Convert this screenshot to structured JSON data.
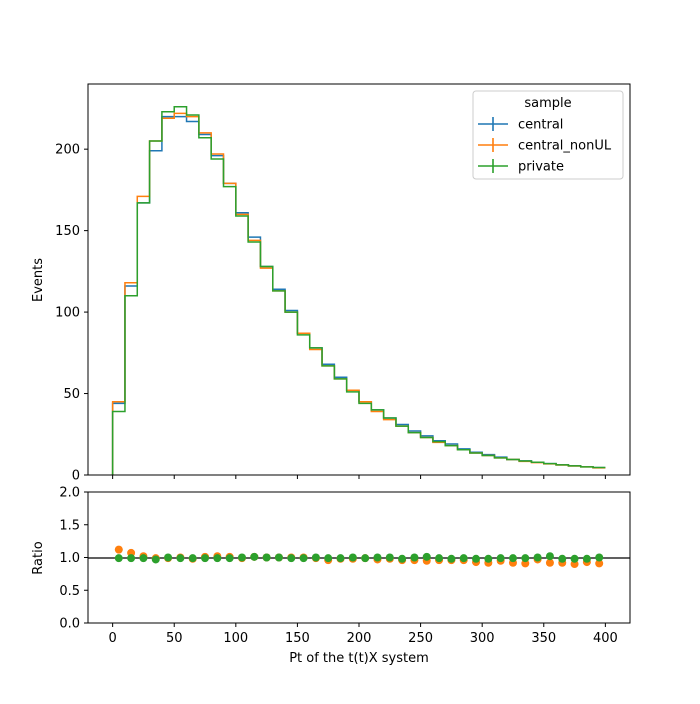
{
  "chart_data": {
    "type": "line",
    "drawstyle": "histogram-step",
    "xlabel": "Pt of the t(t)X system",
    "ylabel": "Events",
    "ratio_ylabel": "Ratio",
    "xlim": [
      -20,
      420
    ],
    "ylim": [
      0,
      240
    ],
    "ratio_ylim": [
      0.0,
      2.0
    ],
    "xticks": [
      "0",
      "50",
      "100",
      "150",
      "200",
      "250",
      "300",
      "350",
      "400"
    ],
    "yticks": [
      "0",
      "50",
      "100",
      "150",
      "200"
    ],
    "ratio_yticks": [
      "0.0",
      "0.5",
      "1.0",
      "1.5",
      "2.0"
    ],
    "bin_edges": [
      0,
      10,
      20,
      30,
      40,
      50,
      60,
      70,
      80,
      90,
      100,
      110,
      120,
      130,
      140,
      150,
      160,
      170,
      180,
      190,
      200,
      210,
      220,
      230,
      240,
      250,
      260,
      270,
      280,
      290,
      300,
      310,
      320,
      330,
      340,
      350,
      360,
      370,
      380,
      390,
      400
    ],
    "legend": {
      "title": "sample",
      "position": "upper-right"
    },
    "series": [
      {
        "name": "central",
        "color": "#1f77b4",
        "values": [
          44,
          116,
          167,
          199,
          220,
          220,
          217,
          209,
          196,
          179,
          161,
          146,
          128,
          114,
          101,
          87,
          78,
          68,
          60,
          52,
          45,
          40,
          35,
          31,
          27,
          24,
          21,
          19,
          16,
          14,
          12.5,
          11,
          9.5,
          8.7,
          7.8,
          7,
          6.3,
          5.7,
          5.1,
          4.5
        ]
      },
      {
        "name": "central_nonUL",
        "color": "#ff7f0e",
        "values": [
          45,
          118,
          171,
          205,
          219,
          222,
          220,
          210,
          197,
          179,
          160,
          144,
          127,
          113,
          100,
          87,
          77,
          67,
          59,
          52,
          45,
          39,
          34,
          30,
          26,
          23,
          20,
          18,
          15.5,
          13.5,
          12,
          10.5,
          9.5,
          8.4,
          7.6,
          6.8,
          6.1,
          5.5,
          5,
          4.4
        ]
      },
      {
        "name": "private",
        "color": "#2ca02c",
        "values": [
          39,
          110,
          167,
          205,
          223,
          226,
          221,
          207,
          194,
          177,
          159,
          143,
          128,
          113,
          100,
          86,
          78,
          67,
          59,
          51,
          44,
          40,
          35,
          30,
          26,
          23,
          20.5,
          18,
          15.5,
          13.5,
          12,
          10.5,
          9.5,
          8.6,
          7.8,
          7,
          6.2,
          5.6,
          5,
          4.6
        ]
      }
    ],
    "ratio_series": [
      {
        "name": "central_nonUL",
        "color": "#ff7f0e",
        "values": [
          1.12,
          1.07,
          1.02,
          0.99,
          0.99,
          1.0,
          0.98,
          1.01,
          1.02,
          1.01,
          0.99,
          1.01,
          1.0,
          1.0,
          1.0,
          1.0,
          0.99,
          0.96,
          0.98,
          0.98,
          0.99,
          0.97,
          0.98,
          0.96,
          0.96,
          0.95,
          0.96,
          0.96,
          0.96,
          0.93,
          0.92,
          0.95,
          0.92,
          0.91,
          0.97,
          0.92,
          0.92,
          0.9,
          0.93,
          0.91
        ]
      },
      {
        "name": "private",
        "color": "#2ca02c",
        "values": [
          0.99,
          0.99,
          0.99,
          0.97,
          1.0,
          0.99,
          0.99,
          0.99,
          0.99,
          0.99,
          1.0,
          1.01,
          1.0,
          1.0,
          0.99,
          0.99,
          1.0,
          0.99,
          0.99,
          1.0,
          0.99,
          1.0,
          1.0,
          0.98,
          1.0,
          1.01,
          0.99,
          0.98,
          0.99,
          0.98,
          0.98,
          0.99,
          0.99,
          0.99,
          1.0,
          1.02,
          0.98,
          0.98,
          0.98,
          1.0
        ]
      }
    ]
  }
}
